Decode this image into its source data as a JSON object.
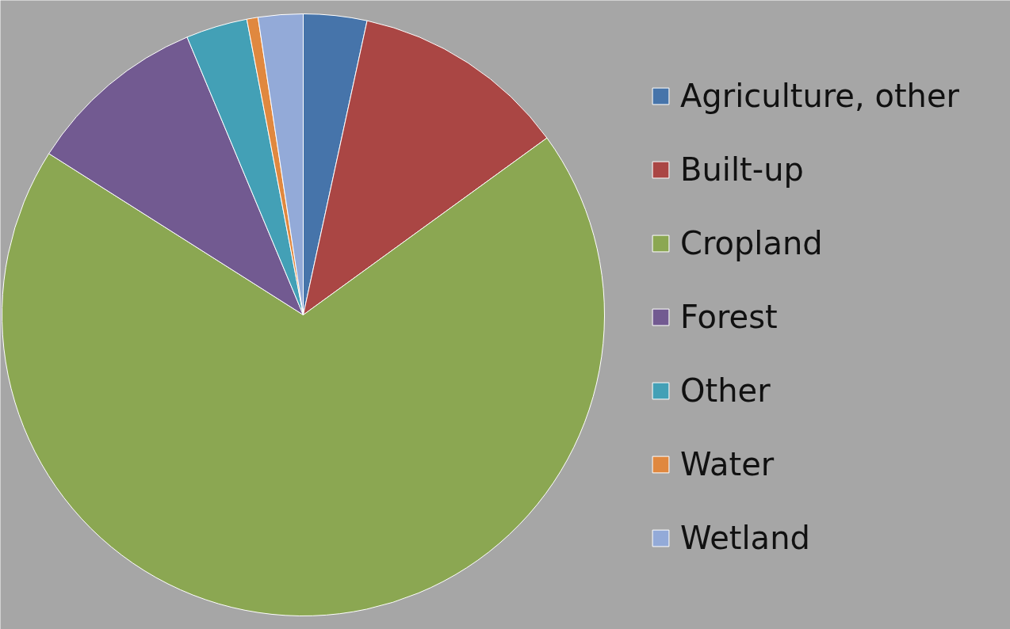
{
  "chart_data": {
    "type": "pie",
    "categories": [
      "Agriculture, other",
      "Built-up",
      "Cropland",
      "Forest",
      "Other",
      "Water",
      "Wetland"
    ],
    "values": [
      3.4,
      11.6,
      69.0,
      9.7,
      3.3,
      0.6,
      2.4
    ],
    "colors": [
      "#4674aa",
      "#aa4644",
      "#8ba752",
      "#725a91",
      "#43a0b6",
      "#e0883f",
      "#93aad8"
    ],
    "legend": "right"
  }
}
